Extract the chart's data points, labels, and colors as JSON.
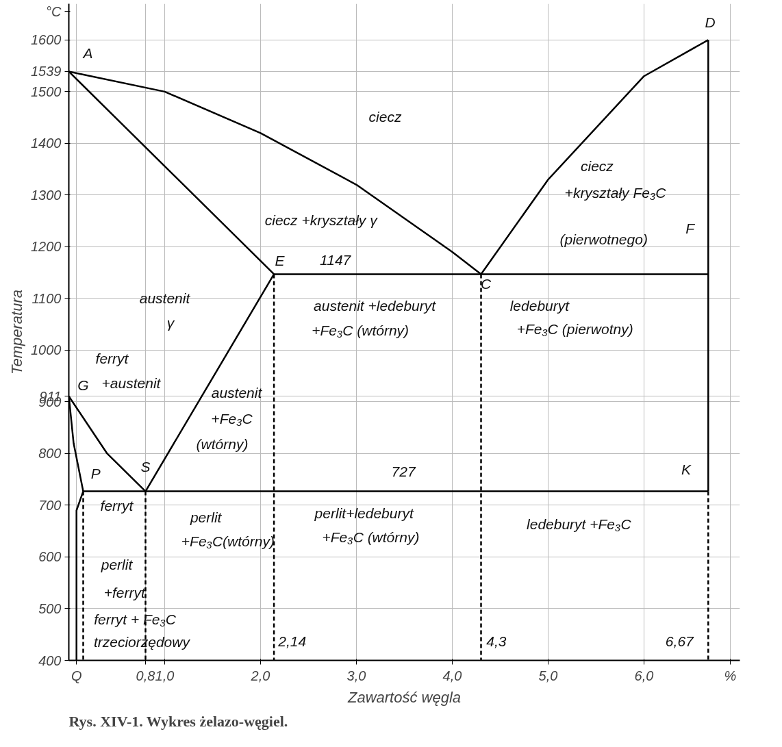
{
  "chart_data": {
    "type": "line",
    "xlabel": "Zawartość węgla",
    "ylabel": "Temperatura",
    "xlim": [
      0,
      7.0
    ],
    "ylim": [
      400,
      1670
    ],
    "xticks": [
      {
        "value": 0.08,
        "label": "Q"
      },
      {
        "value": 0.8,
        "label": "0,8"
      },
      {
        "value": 1.0,
        "label": "1,0"
      },
      {
        "value": 2.0,
        "label": "2,0"
      },
      {
        "value": 3.0,
        "label": "3,0"
      },
      {
        "value": 4.0,
        "label": "4,0"
      },
      {
        "value": 5.0,
        "label": "5,0"
      },
      {
        "value": 6.0,
        "label": "6,0"
      },
      {
        "value": 6.9,
        "label": "%"
      }
    ],
    "yticks": [
      400,
      500,
      600,
      700,
      800,
      900,
      911,
      1000,
      1100,
      1200,
      1300,
      1400,
      1500,
      1539,
      1600,
      {
        "value": 1655,
        "label": "°C"
      }
    ],
    "grid": true,
    "marker": "none",
    "series": [
      {
        "color": "#000000",
        "x": [
          0,
          1.0,
          2.0,
          3.0,
          4.0,
          4.3
        ],
        "values": [
          1539,
          1500,
          1420,
          1320,
          1190,
          1147
        ]
      },
      {
        "color": "#000000",
        "x": [
          4.3,
          5.0,
          6.0,
          6.67
        ],
        "values": [
          1147,
          1330,
          1530,
          1600
        ]
      },
      {
        "color": "#000000",
        "x": [
          0,
          2.14
        ],
        "values": [
          1539,
          1147
        ]
      },
      {
        "color": "#000000",
        "x": [
          2.14,
          6.67
        ],
        "values": [
          1147,
          1147
        ]
      },
      {
        "color": "#000000",
        "x": [
          6.67,
          6.67
        ],
        "values": [
          1600,
          727
        ]
      },
      {
        "color": "#000000",
        "x": [
          2.14,
          0.8
        ],
        "values": [
          1147,
          727
        ]
      },
      {
        "color": "#000000",
        "x": [
          0,
          0.4,
          0.8
        ],
        "values": [
          911,
          800,
          727
        ]
      },
      {
        "color": "#000000",
        "x": [
          0,
          0.05,
          0.15
        ],
        "values": [
          911,
          820,
          727
        ]
      },
      {
        "color": "#000000",
        "x": [
          0.15,
          0.08,
          0.08
        ],
        "values": [
          727,
          690,
          400
        ]
      },
      {
        "color": "#000000",
        "x": [
          0.15,
          6.67
        ],
        "values": [
          727,
          727
        ]
      },
      {
        "color": "#000000",
        "line_style": "dashed",
        "x": [
          6.67,
          6.67
        ],
        "values": [
          727,
          400
        ]
      },
      {
        "color": "#000000",
        "line_style": "dashed",
        "x": [
          2.14,
          2.14
        ],
        "values": [
          1147,
          400
        ]
      },
      {
        "color": "#000000",
        "line_style": "dashed",
        "x": [
          4.3,
          4.3
        ],
        "values": [
          1147,
          400
        ]
      },
      {
        "color": "#000000",
        "line_style": "dashed",
        "x": [
          0.8,
          0.8
        ],
        "values": [
          727,
          400
        ]
      },
      {
        "color": "#000000",
        "line_style": "dashed",
        "x": [
          0.15,
          0.15
        ],
        "values": [
          727,
          400
        ]
      }
    ],
    "annotations": [
      "A",
      "D",
      "ciecz",
      "ciecz",
      "+kryształy Fe₃C",
      "(pierwotnego)",
      "F",
      "ciecz +kryształy γ",
      "E",
      "1147",
      "C",
      "austenit",
      "γ",
      "austenit +ledeburyt",
      "+Fe₃C (wtórny)",
      "ledeburyt",
      "+Fe₃C (pierwotny)",
      "ferryt",
      "+austenit",
      "G",
      "austenit",
      "+Fe₃C",
      "(wtórny)",
      "P",
      "S",
      "727",
      "K",
      "ferryt",
      "perlit",
      "+Fe₃C(wtórny)",
      "perlit+ledeburyt",
      "+Fe₃C (wtórny)",
      "ledeburyt +Fe₃C",
      "perlit",
      "+ferryt",
      "ferryt + Fe₃C",
      "trzeciorzędowy",
      "2,14",
      "4,3",
      "6,67",
      "Rys. XIV-1. Wykres żelazo-węgiel."
    ]
  }
}
